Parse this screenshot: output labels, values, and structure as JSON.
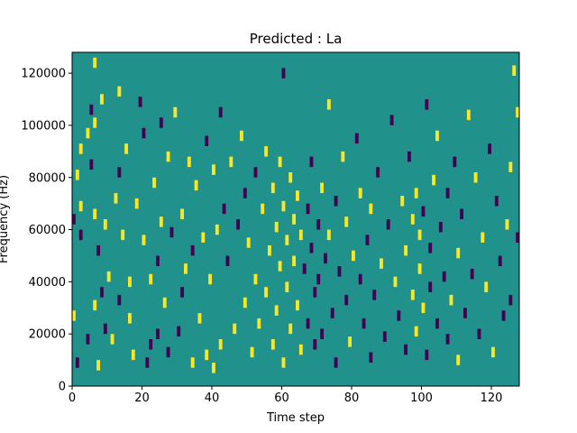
{
  "chart_data": {
    "type": "heatmap",
    "title": "Predicted : La",
    "xlabel": "Time step",
    "ylabel": "Frequency (Hz)",
    "xlim": [
      0,
      128
    ],
    "ylim": [
      0,
      128000
    ],
    "x_ticks": [
      0,
      20,
      40,
      60,
      80,
      100,
      120
    ],
    "y_ticks": [
      0,
      20000,
      40000,
      60000,
      80000,
      100000,
      120000
    ],
    "x_tick_labels": [
      "0",
      "20",
      "40",
      "60",
      "80",
      "100",
      "120"
    ],
    "y_tick_labels": [
      "0",
      "20000",
      "40000",
      "60000",
      "80000",
      "100000",
      "120000"
    ],
    "grid": false,
    "colormap": "viridis",
    "colors": {
      "background_level": "#21918c",
      "low_level": "#440154",
      "high_level": "#fde725"
    },
    "levels": {
      "low": -1,
      "background": 0,
      "high": 1
    },
    "cells": [
      [
        0,
        27000,
        1
      ],
      [
        0,
        64000,
        -1
      ],
      [
        1,
        81000,
        1
      ],
      [
        1,
        9000,
        -1
      ],
      [
        2,
        91000,
        1
      ],
      [
        2,
        58000,
        -1
      ],
      [
        2,
        69000,
        1
      ],
      [
        4,
        97000,
        1
      ],
      [
        4,
        18000,
        -1
      ],
      [
        5,
        106000,
        -1
      ],
      [
        5,
        85000,
        -1
      ],
      [
        6,
        101000,
        1
      ],
      [
        6,
        31000,
        1
      ],
      [
        6,
        66000,
        1
      ],
      [
        6,
        124000,
        1
      ],
      [
        7,
        8000,
        1
      ],
      [
        7,
        52000,
        -1
      ],
      [
        8,
        36000,
        -1
      ],
      [
        8,
        110000,
        1
      ],
      [
        9,
        62000,
        1
      ],
      [
        9,
        22000,
        -1
      ],
      [
        10,
        42000,
        1
      ],
      [
        11,
        18000,
        1
      ],
      [
        12,
        72000,
        1
      ],
      [
        13,
        33000,
        -1
      ],
      [
        13,
        113000,
        1
      ],
      [
        13,
        82000,
        -1
      ],
      [
        14,
        58000,
        1
      ],
      [
        15,
        91000,
        1
      ],
      [
        16,
        26000,
        1
      ],
      [
        16,
        40000,
        1
      ],
      [
        17,
        12000,
        1
      ],
      [
        18,
        70000,
        1
      ],
      [
        19,
        109000,
        -1
      ],
      [
        20,
        56000,
        1
      ],
      [
        20,
        97000,
        -1
      ],
      [
        21,
        9000,
        -1
      ],
      [
        22,
        41000,
        1
      ],
      [
        22,
        16000,
        -1
      ],
      [
        23,
        78000,
        1
      ],
      [
        24,
        48000,
        -1
      ],
      [
        24,
        20000,
        -1
      ],
      [
        25,
        63000,
        1
      ],
      [
        25,
        101000,
        -1
      ],
      [
        26,
        32000,
        1
      ],
      [
        27,
        88000,
        1
      ],
      [
        27,
        13000,
        -1
      ],
      [
        28,
        59000,
        -1
      ],
      [
        29,
        105000,
        1
      ],
      [
        30,
        21000,
        -1
      ],
      [
        31,
        66000,
        1
      ],
      [
        31,
        36000,
        -1
      ],
      [
        32,
        45000,
        1
      ],
      [
        33,
        86000,
        1
      ],
      [
        34,
        9000,
        1
      ],
      [
        34,
        52000,
        -1
      ],
      [
        35,
        77000,
        1
      ],
      [
        36,
        26000,
        1
      ],
      [
        37,
        57000,
        1
      ],
      [
        38,
        12000,
        1
      ],
      [
        38,
        94000,
        -1
      ],
      [
        39,
        41000,
        1
      ],
      [
        40,
        7000,
        1
      ],
      [
        40,
        83000,
        1
      ],
      [
        41,
        60000,
        1
      ],
      [
        42,
        16000,
        1
      ],
      [
        42,
        105000,
        -1
      ],
      [
        43,
        68000,
        -1
      ],
      [
        44,
        48000,
        -1
      ],
      [
        45,
        86000,
        1
      ],
      [
        46,
        22000,
        1
      ],
      [
        47,
        62000,
        -1
      ],
      [
        48,
        96000,
        1
      ],
      [
        49,
        32000,
        1
      ],
      [
        49,
        74000,
        -1
      ],
      [
        50,
        55000,
        1
      ],
      [
        51,
        13000,
        1
      ],
      [
        52,
        82000,
        -1
      ],
      [
        52,
        41000,
        1
      ],
      [
        53,
        24000,
        1
      ],
      [
        54,
        68000,
        1
      ],
      [
        55,
        36000,
        1
      ],
      [
        55,
        90000,
        1
      ],
      [
        56,
        52000,
        1
      ],
      [
        57,
        16000,
        1
      ],
      [
        57,
        76000,
        1
      ],
      [
        58,
        61000,
        1
      ],
      [
        58,
        29000,
        1
      ],
      [
        59,
        86000,
        1
      ],
      [
        59,
        46000,
        1
      ],
      [
        60,
        9000,
        1
      ],
      [
        60,
        69000,
        1
      ],
      [
        60,
        120000,
        -1
      ],
      [
        61,
        38000,
        1
      ],
      [
        61,
        56000,
        1
      ],
      [
        62,
        22000,
        1
      ],
      [
        62,
        80000,
        1
      ],
      [
        63,
        64000,
        1
      ],
      [
        63,
        48000,
        1
      ],
      [
        64,
        31000,
        1
      ],
      [
        64,
        73000,
        1
      ],
      [
        65,
        14000,
        1
      ],
      [
        65,
        58000,
        1
      ],
      [
        66,
        45000,
        -1
      ],
      [
        67,
        68000,
        -1
      ],
      [
        67,
        24000,
        -1
      ],
      [
        68,
        53000,
        -1
      ],
      [
        68,
        86000,
        -1
      ],
      [
        69,
        36000,
        -1
      ],
      [
        69,
        16000,
        -1
      ],
      [
        70,
        62000,
        -1
      ],
      [
        70,
        41000,
        -1
      ],
      [
        71,
        76000,
        1
      ],
      [
        71,
        20000,
        -1
      ],
      [
        72,
        49000,
        -1
      ],
      [
        73,
        108000,
        1
      ],
      [
        73,
        58000,
        1
      ],
      [
        74,
        28000,
        -1
      ],
      [
        75,
        9000,
        -1
      ],
      [
        75,
        71000,
        -1
      ],
      [
        76,
        44000,
        -1
      ],
      [
        77,
        88000,
        1
      ],
      [
        78,
        63000,
        1
      ],
      [
        78,
        33000,
        -1
      ],
      [
        79,
        17000,
        1
      ],
      [
        80,
        50000,
        1
      ],
      [
        81,
        95000,
        -1
      ],
      [
        82,
        41000,
        -1
      ],
      [
        82,
        74000,
        1
      ],
      [
        83,
        24000,
        -1
      ],
      [
        84,
        56000,
        -1
      ],
      [
        85,
        11000,
        -1
      ],
      [
        85,
        68000,
        1
      ],
      [
        86,
        35000,
        -1
      ],
      [
        87,
        82000,
        -1
      ],
      [
        88,
        47000,
        1
      ],
      [
        89,
        19000,
        -1
      ],
      [
        90,
        62000,
        -1
      ],
      [
        91,
        102000,
        -1
      ],
      [
        92,
        40000,
        1
      ],
      [
        93,
        27000,
        -1
      ],
      [
        94,
        71000,
        1
      ],
      [
        95,
        52000,
        1
      ],
      [
        95,
        14000,
        -1
      ],
      [
        96,
        88000,
        -1
      ],
      [
        97,
        35000,
        1
      ],
      [
        97,
        64000,
        1
      ],
      [
        98,
        21000,
        1
      ],
      [
        98,
        74000,
        1
      ],
      [
        99,
        45000,
        1
      ],
      [
        99,
        58000,
        1
      ],
      [
        100,
        30000,
        1
      ],
      [
        100,
        67000,
        -1
      ],
      [
        101,
        12000,
        -1
      ],
      [
        101,
        108000,
        -1
      ],
      [
        102,
        53000,
        -1
      ],
      [
        102,
        38000,
        -1
      ],
      [
        103,
        79000,
        1
      ],
      [
        104,
        24000,
        -1
      ],
      [
        104,
        96000,
        1
      ],
      [
        105,
        61000,
        -1
      ],
      [
        106,
        42000,
        -1
      ],
      [
        107,
        74000,
        -1
      ],
      [
        107,
        18000,
        -1
      ],
      [
        108,
        33000,
        1
      ],
      [
        109,
        86000,
        -1
      ],
      [
        110,
        51000,
        1
      ],
      [
        110,
        10000,
        1
      ],
      [
        111,
        66000,
        -1
      ],
      [
        112,
        28000,
        -1
      ],
      [
        113,
        104000,
        1
      ],
      [
        114,
        43000,
        -1
      ],
      [
        115,
        80000,
        1
      ],
      [
        116,
        20000,
        -1
      ],
      [
        117,
        57000,
        1
      ],
      [
        118,
        38000,
        1
      ],
      [
        119,
        91000,
        -1
      ],
      [
        120,
        13000,
        1
      ],
      [
        121,
        71000,
        -1
      ],
      [
        122,
        48000,
        -1
      ],
      [
        123,
        27000,
        -1
      ],
      [
        124,
        62000,
        1
      ],
      [
        125,
        84000,
        1
      ],
      [
        125,
        33000,
        -1
      ],
      [
        126,
        121000,
        1
      ],
      [
        127,
        57000,
        -1
      ],
      [
        127,
        105000,
        1
      ]
    ]
  }
}
